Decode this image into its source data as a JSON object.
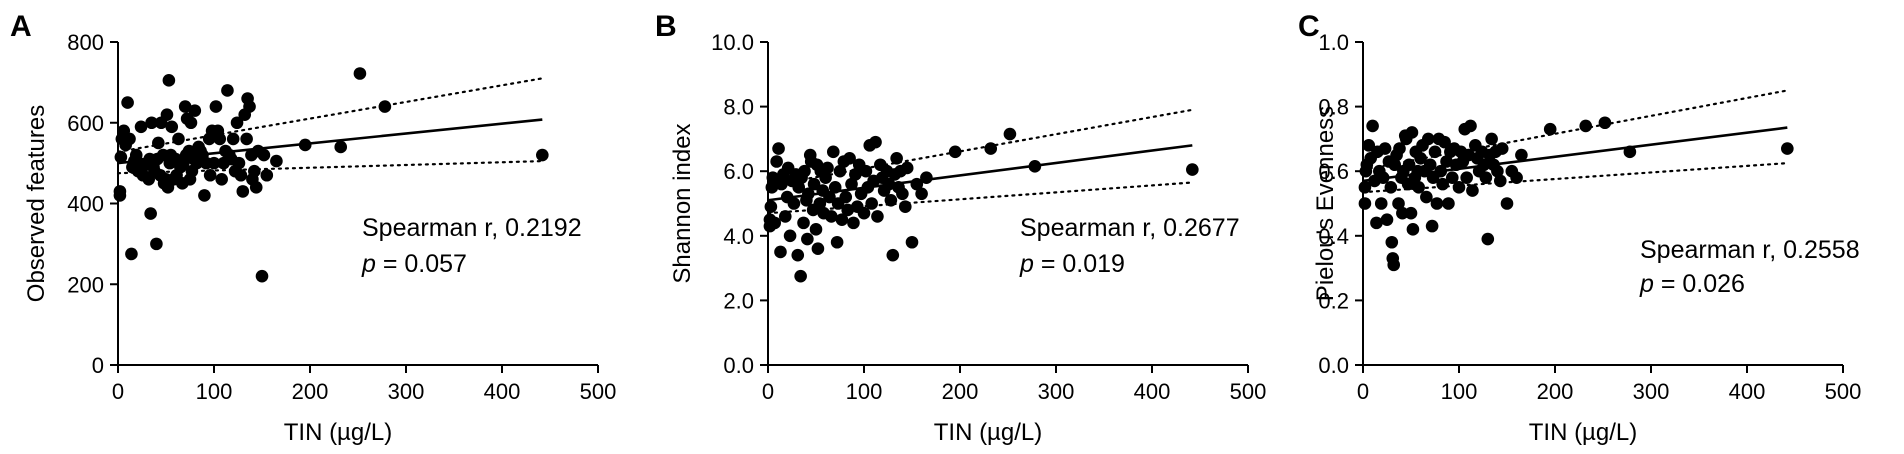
{
  "colors": {
    "ink": "#000000",
    "background": "#ffffff"
  },
  "chart_data": [
    {
      "type": "scatter",
      "panel_label": "A",
      "xlabel": "TIN (µg/L)",
      "ylabel": "Observed features",
      "xlim": [
        0,
        500
      ],
      "ylim": [
        0,
        800
      ],
      "x_ticks": [
        "0",
        "100",
        "200",
        "300",
        "400",
        "500"
      ],
      "y_ticks": [
        "0",
        "200",
        "400",
        "600",
        "800"
      ],
      "stat_line1": "Spearman r, 0.2192",
      "stat_p_symbol": "p",
      "stat_p_value": " = 0.057",
      "fit": {
        "x": [
          0,
          442
        ],
        "y": [
          500,
          608
        ]
      },
      "ci_upper": {
        "x": [
          0,
          442
        ],
        "y": [
          528,
          710
        ]
      },
      "ci_lower": {
        "x": [
          0,
          442
        ],
        "y": [
          475,
          505
        ]
      },
      "points": [
        [
          2,
          420
        ],
        [
          2,
          430
        ],
        [
          3,
          515
        ],
        [
          4,
          560
        ],
        [
          6,
          580
        ],
        [
          8,
          545
        ],
        [
          10,
          650
        ],
        [
          12,
          560
        ],
        [
          14,
          275
        ],
        [
          15,
          490
        ],
        [
          17,
          505
        ],
        [
          19,
          520
        ],
        [
          21,
          480
        ],
        [
          22,
          500
        ],
        [
          24,
          590
        ],
        [
          26,
          470
        ],
        [
          28,
          495
        ],
        [
          30,
          500
        ],
        [
          32,
          460
        ],
        [
          33,
          510
        ],
        [
          34,
          375
        ],
        [
          35,
          600
        ],
        [
          37,
          490
        ],
        [
          38,
          480
        ],
        [
          40,
          300
        ],
        [
          41,
          510
        ],
        [
          42,
          550
        ],
        [
          44,
          470
        ],
        [
          45,
          600
        ],
        [
          47,
          520
        ],
        [
          48,
          450
        ],
        [
          50,
          460
        ],
        [
          51,
          620
        ],
        [
          52,
          440
        ],
        [
          53,
          705
        ],
        [
          54,
          500
        ],
        [
          55,
          520
        ],
        [
          56,
          590
        ],
        [
          58,
          460
        ],
        [
          60,
          510
        ],
        [
          61,
          470
        ],
        [
          63,
          560
        ],
        [
          65,
          490
        ],
        [
          67,
          450
        ],
        [
          68,
          500
        ],
        [
          70,
          640
        ],
        [
          71,
          520
        ],
        [
          72,
          610
        ],
        [
          74,
          530
        ],
        [
          75,
          460
        ],
        [
          76,
          600
        ],
        [
          77,
          480
        ],
        [
          79,
          510
        ],
        [
          80,
          630
        ],
        [
          82,
          500
        ],
        [
          84,
          540
        ],
        [
          86,
          530
        ],
        [
          88,
          520
        ],
        [
          90,
          420
        ],
        [
          92,
          500
        ],
        [
          95,
          560
        ],
        [
          96,
          470
        ],
        [
          98,
          580
        ],
        [
          100,
          500
        ],
        [
          102,
          640
        ],
        [
          104,
          580
        ],
        [
          106,
          560
        ],
        [
          108,
          460
        ],
        [
          110,
          500
        ],
        [
          112,
          530
        ],
        [
          114,
          680
        ],
        [
          116,
          520
        ],
        [
          118,
          510
        ],
        [
          120,
          560
        ],
        [
          122,
          480
        ],
        [
          124,
          600
        ],
        [
          126,
          500
        ],
        [
          128,
          470
        ],
        [
          130,
          430
        ],
        [
          132,
          620
        ],
        [
          134,
          560
        ],
        [
          135,
          660
        ],
        [
          137,
          640
        ],
        [
          139,
          520
        ],
        [
          140,
          460
        ],
        [
          142,
          480
        ],
        [
          144,
          440
        ],
        [
          146,
          530
        ],
        [
          150,
          220
        ],
        [
          152,
          520
        ],
        [
          155,
          470
        ],
        [
          165,
          505
        ],
        [
          195,
          545
        ],
        [
          232,
          540
        ],
        [
          252,
          722
        ],
        [
          278,
          640
        ],
        [
          442,
          520
        ]
      ]
    },
    {
      "type": "scatter",
      "panel_label": "B",
      "xlabel": "TIN (µg/L)",
      "ylabel": "Shannon index",
      "xlim": [
        0,
        500
      ],
      "ylim": [
        0,
        10
      ],
      "x_ticks": [
        "0",
        "100",
        "200",
        "300",
        "400",
        "500"
      ],
      "y_ticks": [
        "0.0",
        "2.0",
        "4.0",
        "6.0",
        "8.0",
        "10.0"
      ],
      "stat_line1": "Spearman r, 0.2677",
      "stat_p_symbol": "p",
      "stat_p_value": " = 0.019",
      "fit": {
        "x": [
          0,
          442
        ],
        "y": [
          5.1,
          6.8
        ]
      },
      "ci_upper": {
        "x": [
          0,
          442
        ],
        "y": [
          5.55,
          7.9
        ]
      },
      "ci_lower": {
        "x": [
          0,
          442
        ],
        "y": [
          4.7,
          5.65
        ]
      },
      "points": [
        [
          2,
          4.3
        ],
        [
          2,
          4.5
        ],
        [
          3,
          4.9
        ],
        [
          4,
          5.5
        ],
        [
          5,
          5.8
        ],
        [
          7,
          4.4
        ],
        [
          9,
          6.3
        ],
        [
          11,
          6.7
        ],
        [
          13,
          3.5
        ],
        [
          14,
          5.6
        ],
        [
          16,
          5.9
        ],
        [
          18,
          4.6
        ],
        [
          20,
          5.2
        ],
        [
          21,
          6.1
        ],
        [
          23,
          4.0
        ],
        [
          25,
          5.7
        ],
        [
          27,
          5.0
        ],
        [
          29,
          5.9
        ],
        [
          31,
          3.4
        ],
        [
          32,
          5.5
        ],
        [
          34,
          2.75
        ],
        [
          35,
          5.8
        ],
        [
          37,
          4.4
        ],
        [
          38,
          6.0
        ],
        [
          40,
          5.1
        ],
        [
          41,
          3.9
        ],
        [
          42,
          5.3
        ],
        [
          44,
          6.5
        ],
        [
          45,
          6.3
        ],
        [
          47,
          4.8
        ],
        [
          48,
          5.6
        ],
        [
          50,
          4.2
        ],
        [
          51,
          6.2
        ],
        [
          52,
          3.6
        ],
        [
          54,
          5.0
        ],
        [
          55,
          6.0
        ],
        [
          57,
          5.4
        ],
        [
          58,
          4.7
        ],
        [
          60,
          5.8
        ],
        [
          62,
          6.1
        ],
        [
          64,
          5.2
        ],
        [
          66,
          4.6
        ],
        [
          68,
          6.6
        ],
        [
          70,
          5.5
        ],
        [
          72,
          3.8
        ],
        [
          73,
          5.0
        ],
        [
          75,
          6.0
        ],
        [
          77,
          4.5
        ],
        [
          79,
          6.3
        ],
        [
          81,
          5.2
        ],
        [
          83,
          4.8
        ],
        [
          85,
          6.4
        ],
        [
          87,
          5.6
        ],
        [
          89,
          4.4
        ],
        [
          91,
          5.9
        ],
        [
          93,
          4.9
        ],
        [
          95,
          6.2
        ],
        [
          97,
          5.3
        ],
        [
          100,
          4.7
        ],
        [
          102,
          6.0
        ],
        [
          104,
          5.5
        ],
        [
          106,
          6.8
        ],
        [
          108,
          5.0
        ],
        [
          110,
          5.7
        ],
        [
          112,
          6.9
        ],
        [
          114,
          4.6
        ],
        [
          117,
          6.2
        ],
        [
          119,
          5.8
        ],
        [
          121,
          5.4
        ],
        [
          124,
          6.0
        ],
        [
          126,
          5.6
        ],
        [
          128,
          5.1
        ],
        [
          130,
          3.4
        ],
        [
          132,
          5.9
        ],
        [
          134,
          6.4
        ],
        [
          136,
          5.5
        ],
        [
          138,
          6.0
        ],
        [
          140,
          5.3
        ],
        [
          143,
          4.9
        ],
        [
          145,
          6.1
        ],
        [
          150,
          3.8
        ],
        [
          155,
          5.6
        ],
        [
          160,
          5.3
        ],
        [
          165,
          5.8
        ],
        [
          195,
          6.6
        ],
        [
          232,
          6.7
        ],
        [
          252,
          7.15
        ],
        [
          278,
          6.15
        ],
        [
          442,
          6.05
        ]
      ]
    },
    {
      "type": "scatter",
      "panel_label": "C",
      "xlabel": "TIN (µg/L)",
      "ylabel": "Pielou's Evenness",
      "xlim": [
        0,
        500
      ],
      "ylim": [
        0,
        1
      ],
      "x_ticks": [
        "0",
        "100",
        "200",
        "300",
        "400",
        "500"
      ],
      "y_ticks": [
        "0.0",
        "0.2",
        "0.4",
        "0.6",
        "0.8",
        "1.0"
      ],
      "stat_line1": "Spearman r, 0.2558",
      "stat_p_symbol": "p",
      "stat_p_value": " = 0.026",
      "fit": {
        "x": [
          0,
          442
        ],
        "y": [
          0.57,
          0.735
        ]
      },
      "ci_upper": {
        "x": [
          0,
          442
        ],
        "y": [
          0.605,
          0.85
        ]
      },
      "ci_lower": {
        "x": [
          0,
          442
        ],
        "y": [
          0.535,
          0.625
        ]
      },
      "points": [
        [
          2,
          0.5
        ],
        [
          2,
          0.55
        ],
        [
          3,
          0.6
        ],
        [
          4,
          0.62
        ],
        [
          6,
          0.68
        ],
        [
          8,
          0.64
        ],
        [
          10,
          0.74
        ],
        [
          12,
          0.57
        ],
        [
          14,
          0.44
        ],
        [
          15,
          0.66
        ],
        [
          17,
          0.6
        ],
        [
          19,
          0.5
        ],
        [
          21,
          0.58
        ],
        [
          23,
          0.67
        ],
        [
          25,
          0.45
        ],
        [
          27,
          0.63
        ],
        [
          29,
          0.55
        ],
        [
          30,
          0.38
        ],
        [
          31,
          0.33
        ],
        [
          32,
          0.31
        ],
        [
          33,
          0.62
        ],
        [
          35,
          0.65
        ],
        [
          37,
          0.5
        ],
        [
          38,
          0.67
        ],
        [
          40,
          0.58
        ],
        [
          41,
          0.47
        ],
        [
          42,
          0.6
        ],
        [
          44,
          0.71
        ],
        [
          45,
          0.7
        ],
        [
          47,
          0.56
        ],
        [
          48,
          0.62
        ],
        [
          50,
          0.47
        ],
        [
          51,
          0.72
        ],
        [
          52,
          0.42
        ],
        [
          54,
          0.58
        ],
        [
          55,
          0.66
        ],
        [
          57,
          0.6
        ],
        [
          58,
          0.55
        ],
        [
          60,
          0.64
        ],
        [
          62,
          0.68
        ],
        [
          64,
          0.6
        ],
        [
          66,
          0.52
        ],
        [
          68,
          0.7
        ],
        [
          70,
          0.62
        ],
        [
          72,
          0.43
        ],
        [
          73,
          0.58
        ],
        [
          75,
          0.66
        ],
        [
          77,
          0.5
        ],
        [
          79,
          0.7
        ],
        [
          81,
          0.6
        ],
        [
          83,
          0.56
        ],
        [
          85,
          0.69
        ],
        [
          87,
          0.63
        ],
        [
          89,
          0.5
        ],
        [
          91,
          0.66
        ],
        [
          93,
          0.58
        ],
        [
          95,
          0.67
        ],
        [
          97,
          0.62
        ],
        [
          100,
          0.55
        ],
        [
          102,
          0.66
        ],
        [
          104,
          0.63
        ],
        [
          106,
          0.73
        ],
        [
          108,
          0.58
        ],
        [
          110,
          0.65
        ],
        [
          112,
          0.74
        ],
        [
          114,
          0.54
        ],
        [
          117,
          0.68
        ],
        [
          119,
          0.64
        ],
        [
          121,
          0.6
        ],
        [
          124,
          0.66
        ],
        [
          126,
          0.62
        ],
        [
          128,
          0.58
        ],
        [
          130,
          0.39
        ],
        [
          132,
          0.65
        ],
        [
          134,
          0.7
        ],
        [
          136,
          0.62
        ],
        [
          138,
          0.66
        ],
        [
          140,
          0.6
        ],
        [
          143,
          0.57
        ],
        [
          145,
          0.67
        ],
        [
          150,
          0.5
        ],
        [
          155,
          0.6
        ],
        [
          160,
          0.58
        ],
        [
          165,
          0.65
        ],
        [
          195,
          0.73
        ],
        [
          232,
          0.74
        ],
        [
          252,
          0.75
        ],
        [
          278,
          0.66
        ],
        [
          442,
          0.67
        ]
      ]
    }
  ]
}
